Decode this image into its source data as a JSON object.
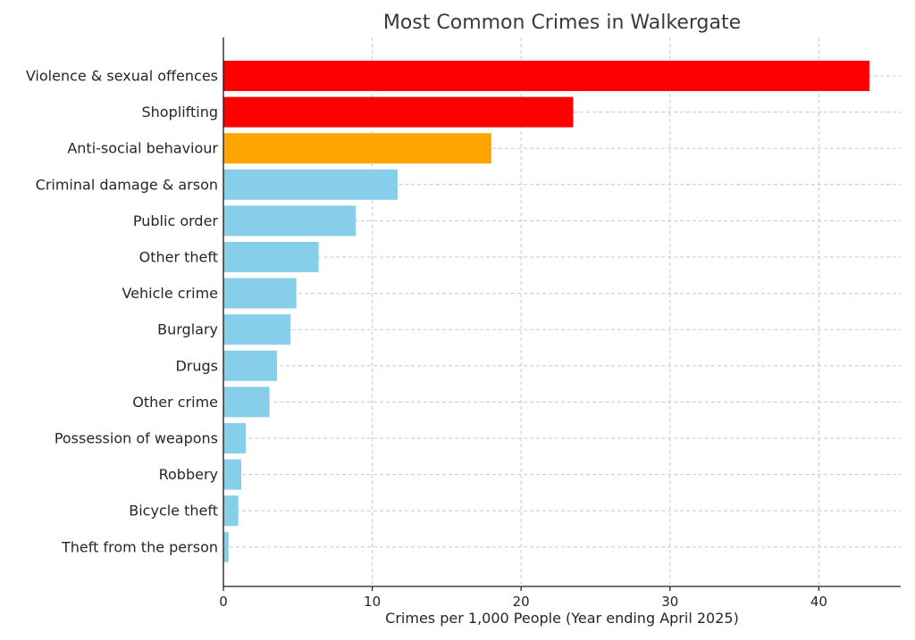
{
  "chart_data": {
    "type": "bar",
    "orientation": "horizontal",
    "title": "Most Common Crimes in Walkergate",
    "xlabel": "Crimes per 1,000 People (Year ending April 2025)",
    "ylabel": "",
    "xlim": [
      0,
      45.5
    ],
    "xticks": [
      0,
      10,
      20,
      30,
      40
    ],
    "grid": true,
    "legend": "none",
    "categories": [
      "Violence & sexual offences",
      "Shoplifting",
      "Anti-social behaviour",
      "Criminal damage & arson",
      "Public order",
      "Other theft",
      "Vehicle crime",
      "Burglary",
      "Drugs",
      "Other crime",
      "Possession of weapons",
      "Robbery",
      "Bicycle theft",
      "Theft from the person"
    ],
    "values": [
      43.4,
      23.5,
      18.0,
      11.7,
      8.9,
      6.4,
      4.9,
      4.5,
      3.6,
      3.1,
      1.5,
      1.2,
      1.0,
      0.35
    ],
    "colors": [
      "#ff0000",
      "#ff0000",
      "#ffa500",
      "#87ceeb",
      "#87ceeb",
      "#87ceeb",
      "#87ceeb",
      "#87ceeb",
      "#87ceeb",
      "#87ceeb",
      "#87ceeb",
      "#87ceeb",
      "#87ceeb",
      "#87ceeb"
    ]
  }
}
